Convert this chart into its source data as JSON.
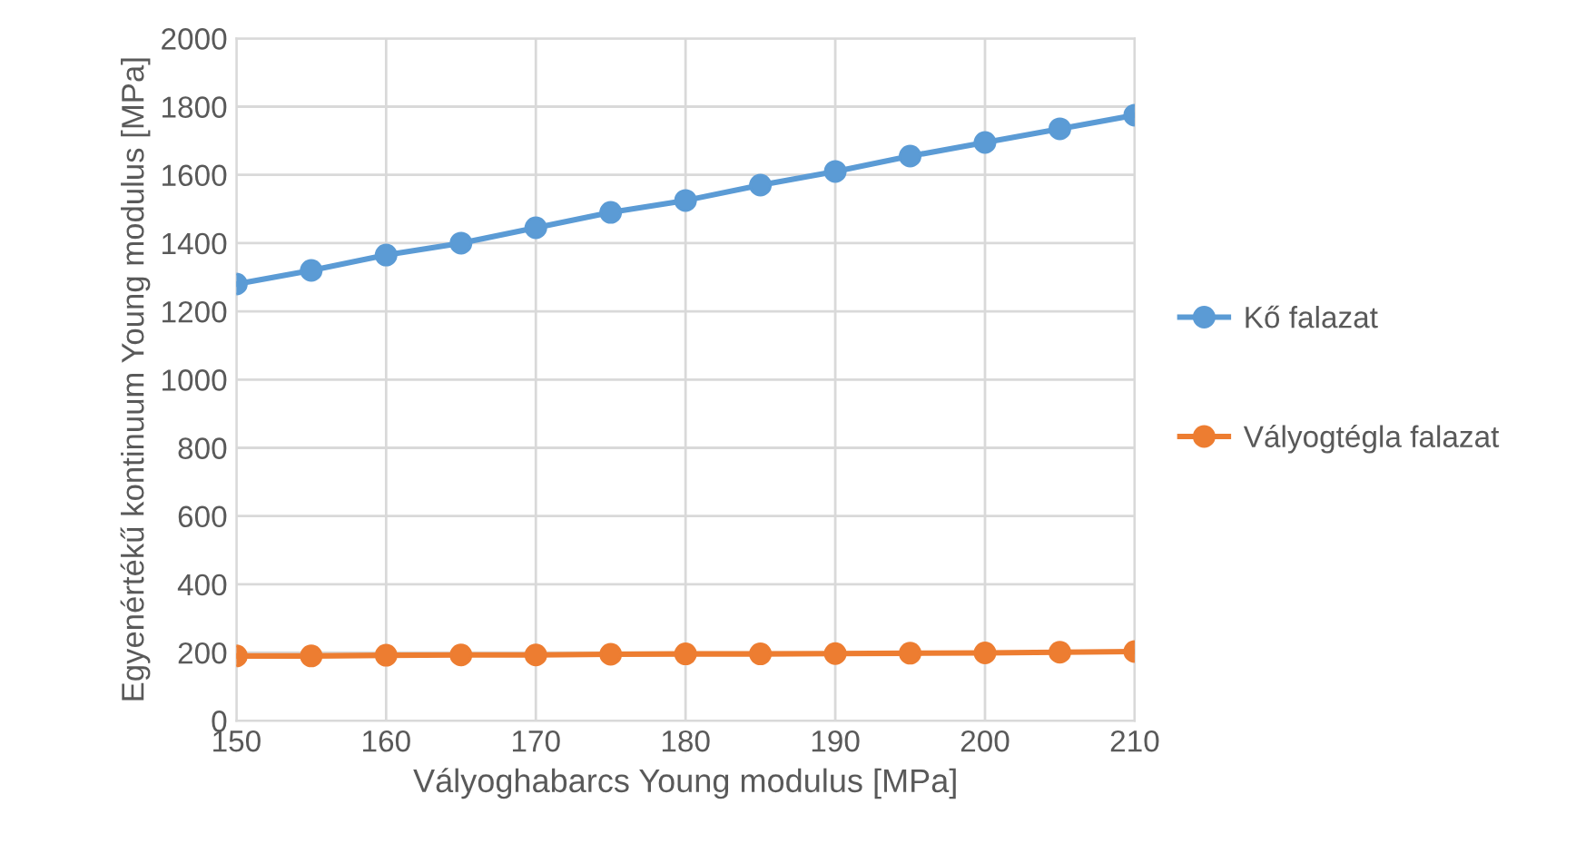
{
  "chart_data": {
    "type": "line",
    "xlabel": "Vályoghabarcs Young modulus [MPa]",
    "ylabel": "Egyenértékű kontinuum Young modulus [MPa]",
    "x": [
      150,
      155,
      160,
      165,
      170,
      175,
      180,
      185,
      190,
      195,
      200,
      205,
      210
    ],
    "series": [
      {
        "name": "Kő falazat",
        "color": "#5b9bd5",
        "values": [
          1280,
          1320,
          1365,
          1400,
          1445,
          1490,
          1525,
          1570,
          1610,
          1655,
          1695,
          1735,
          1775
        ]
      },
      {
        "name": "Vályogtégla falazat",
        "color": "#ed7d31",
        "values": [
          190,
          190,
          192,
          193,
          193,
          195,
          196,
          196,
          197,
          198,
          199,
          201,
          203
        ]
      }
    ],
    "xlim": [
      150,
      210
    ],
    "xticks": [
      150,
      160,
      170,
      180,
      190,
      200,
      210
    ],
    "ylim": [
      0,
      2000
    ],
    "yticks": [
      0,
      200,
      400,
      600,
      800,
      1000,
      1200,
      1400,
      1600,
      1800,
      2000
    ],
    "grid": true,
    "legend": "right",
    "marker": "circle",
    "line_style": "solid"
  }
}
